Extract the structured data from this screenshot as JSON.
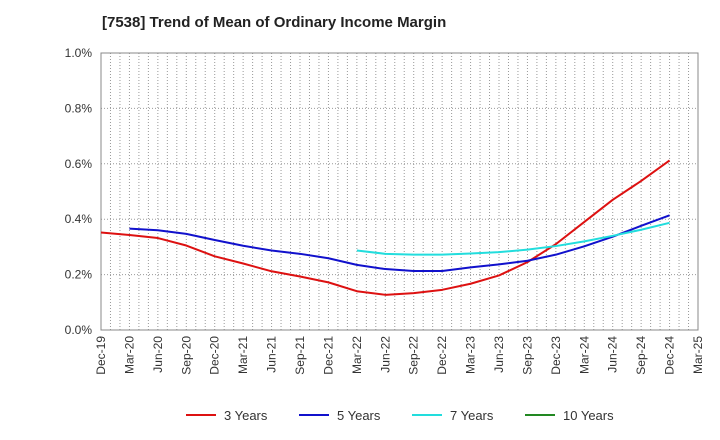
{
  "chart_data": {
    "type": "line",
    "title": "[7538]  Trend of Mean of Ordinary Income Margin",
    "xlabel": "",
    "ylabel": "",
    "ylim": [
      0,
      1.0
    ],
    "y_ticks": [
      "0.0%",
      "0.2%",
      "0.4%",
      "0.6%",
      "0.8%",
      "1.0%"
    ],
    "x_ticks": [
      "Dec-19",
      "Mar-20",
      "Jun-20",
      "Sep-20",
      "Dec-20",
      "Mar-21",
      "Jun-21",
      "Sep-21",
      "Dec-21",
      "Mar-22",
      "Jun-22",
      "Sep-22",
      "Dec-22",
      "Mar-23",
      "Jun-23",
      "Sep-23",
      "Dec-23",
      "Mar-24",
      "Jun-24",
      "Sep-24",
      "Dec-24",
      "Mar-25"
    ],
    "grid": true,
    "legend_position": "bottom",
    "series": [
      {
        "name": "3 Years",
        "color": "#dd1111",
        "points": [
          [
            "Dec-19",
            0.352
          ],
          [
            "Mar-20",
            0.343
          ],
          [
            "Jun-20",
            0.332
          ],
          [
            "Sep-20",
            0.305
          ],
          [
            "Dec-20",
            0.266
          ],
          [
            "Mar-21",
            0.24
          ],
          [
            "Jun-21",
            0.212
          ],
          [
            "Sep-21",
            0.193
          ],
          [
            "Dec-21",
            0.172
          ],
          [
            "Mar-22",
            0.14
          ],
          [
            "Jun-22",
            0.127
          ],
          [
            "Sep-22",
            0.133
          ],
          [
            "Dec-22",
            0.145
          ],
          [
            "Mar-23",
            0.167
          ],
          [
            "Jun-23",
            0.197
          ],
          [
            "Sep-23",
            0.245
          ],
          [
            "Dec-23",
            0.31
          ],
          [
            "Mar-24",
            0.39
          ],
          [
            "Jun-24",
            0.47
          ],
          [
            "Sep-24",
            0.538
          ],
          [
            "Dec-24",
            0.612
          ]
        ]
      },
      {
        "name": "5 Years",
        "color": "#1111cc",
        "points": [
          [
            "Mar-20",
            0.366
          ],
          [
            "Jun-20",
            0.36
          ],
          [
            "Sep-20",
            0.347
          ],
          [
            "Dec-20",
            0.325
          ],
          [
            "Mar-21",
            0.304
          ],
          [
            "Jun-21",
            0.287
          ],
          [
            "Sep-21",
            0.275
          ],
          [
            "Dec-21",
            0.259
          ],
          [
            "Mar-22",
            0.235
          ],
          [
            "Jun-22",
            0.22
          ],
          [
            "Sep-22",
            0.213
          ],
          [
            "Dec-22",
            0.213
          ],
          [
            "Mar-23",
            0.226
          ],
          [
            "Jun-23",
            0.237
          ],
          [
            "Sep-23",
            0.25
          ],
          [
            "Dec-23",
            0.272
          ],
          [
            "Mar-24",
            0.302
          ],
          [
            "Jun-24",
            0.337
          ],
          [
            "Sep-24",
            0.376
          ],
          [
            "Dec-24",
            0.414
          ]
        ]
      },
      {
        "name": "7 Years",
        "color": "#22dddd",
        "points": [
          [
            "Mar-22",
            0.287
          ],
          [
            "Jun-22",
            0.275
          ],
          [
            "Sep-22",
            0.272
          ],
          [
            "Dec-22",
            0.272
          ],
          [
            "Mar-23",
            0.276
          ],
          [
            "Jun-23",
            0.281
          ],
          [
            "Sep-23",
            0.29
          ],
          [
            "Dec-23",
            0.303
          ],
          [
            "Mar-24",
            0.32
          ],
          [
            "Jun-24",
            0.34
          ],
          [
            "Sep-24",
            0.362
          ],
          [
            "Dec-24",
            0.387
          ]
        ]
      },
      {
        "name": "10 Years",
        "color": "#228822",
        "points": []
      }
    ]
  }
}
